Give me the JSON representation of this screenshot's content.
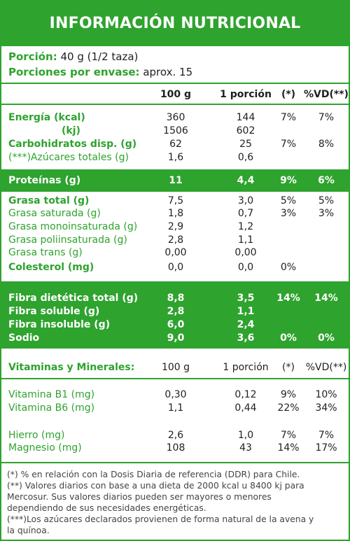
{
  "title": "INFORMACIÓN NUTRICIONAL",
  "portion": {
    "label": "Porción:",
    "value": "40 g (1/2 taza)",
    "per_label": "Porciones por envase:",
    "per_value": "aprox. 15"
  },
  "header": {
    "c100": "100 g",
    "cporc": "1 porción",
    "cpct": "(*)",
    "cvd": "%VD(**)"
  },
  "rows": {
    "energia": {
      "label": "Energía (kcal)",
      "c100": "360",
      "cporc": "144",
      "pct": "7%",
      "vd": "7%"
    },
    "kj": {
      "label": "(kj)",
      "c100": "1506",
      "cporc": "602"
    },
    "carbo": {
      "label": "Carbohidratos disp. (g)",
      "c100": "62",
      "cporc": "25",
      "pct": "7%",
      "vd": "8%"
    },
    "azucar": {
      "label": "(***)Azúcares totales (g)",
      "c100": "1,6",
      "cporc": "0,6"
    },
    "proteinas": {
      "label": "Proteínas (g)",
      "c100": "11",
      "cporc": "4,4",
      "pct": "9%",
      "vd": "6%"
    },
    "grasa": {
      "label": "Grasa total (g)",
      "c100": "7,5",
      "cporc": "3,0",
      "pct": "5%",
      "vd": "5%"
    },
    "saturada": {
      "label": "Grasa saturada (g)",
      "c100": "1,8",
      "cporc": "0,7",
      "pct": "3%",
      "vd": "3%"
    },
    "mono": {
      "label": "Grasa monoinsaturada (g)",
      "c100": "2,9",
      "cporc": "1,2"
    },
    "poli": {
      "label": "Grasa poliinsaturada (g)",
      "c100": "2,8",
      "cporc": "1,1"
    },
    "trans": {
      "label": "Grasa trans (g)",
      "c100": "0,00",
      "cporc": "0,00"
    },
    "colesterol": {
      "label": "Colesterol (mg)",
      "c100": "0,0",
      "cporc": "0,0",
      "pct": "0%"
    },
    "fibra": {
      "label": "Fibra dietética total (g)",
      "c100": "8,8",
      "cporc": "3,5",
      "pct": "14%",
      "vd": "14%"
    },
    "soluble": {
      "label": "Fibra soluble (g)",
      "c100": "2,8",
      "cporc": "1,1"
    },
    "insoluble": {
      "label": "Fibra insoluble (g)",
      "c100": "6,0",
      "cporc": "2,4"
    },
    "sodio": {
      "label": "Sodio",
      "c100": "9,0",
      "cporc": "3,6",
      "pct": "0%",
      "vd": "0%"
    }
  },
  "vitamins": {
    "header": {
      "label": "Vitaminas y Minerales:",
      "c100": "100 g",
      "cporc": "1 porción",
      "cpct": "(*)",
      "cvd": "%VD(**)"
    },
    "b1": {
      "label": "Vitamina B1 (mg)",
      "c100": "0,30",
      "cporc": "0,12",
      "pct": "9%",
      "vd": "10%"
    },
    "b6": {
      "label": "Vitamina B6 (mg)",
      "c100": "1,1",
      "cporc": "0,44",
      "pct": "22%",
      "vd": "34%"
    },
    "hierro": {
      "label": "Hierro (mg)",
      "c100": "2,6",
      "cporc": "1,0",
      "pct": "7%",
      "vd": "7%"
    },
    "magnesio": {
      "label": "Magnesio (mg)",
      "c100": "108",
      "cporc": "43",
      "pct": "14%",
      "vd": "17%"
    }
  },
  "footnotes": [
    "(*) % en relación con la Dosis Diaria de referencia (DDR) para Chile.",
    "(**) Valores diarios con base a una dieta de 2000 kcal u 8400 kj para",
    "Mercosur. Sus valores diarios pueden ser mayores o menores",
    "dependiendo de sus necesidades energéticas.",
    "(***)Los azúcares declarados provienen de forma natural de la avena y",
    "la quínoa."
  ]
}
